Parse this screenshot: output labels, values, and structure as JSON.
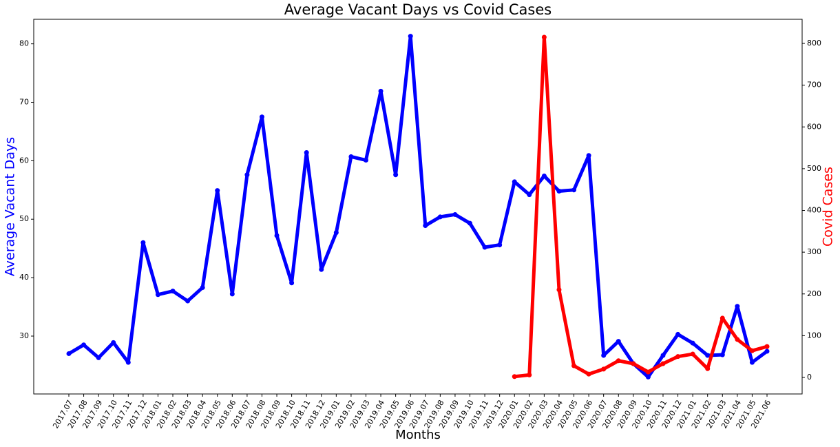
{
  "chart_data": {
    "type": "line",
    "title": "Average Vacant Days vs Covid Cases",
    "xlabel": "Months",
    "ylabel": "Average Vacant Days",
    "y2label": "Covid Cases",
    "categories": [
      "2017.07",
      "2017.08",
      "2017.09",
      "2017.10",
      "2017.11",
      "2017.12",
      "2018.01",
      "2018.02",
      "2018.03",
      "2018.04",
      "2018.05",
      "2018.06",
      "2018.07",
      "2018.08",
      "2018.09",
      "2018.10",
      "2018.11",
      "2018.12",
      "2019.01",
      "2019.02",
      "2019.03",
      "2019.04",
      "2019.05",
      "2019.06",
      "2019.07",
      "2019.08",
      "2019.09",
      "2019.10",
      "2019.11",
      "2019.12",
      "2020.01",
      "2020.02",
      "2020.03",
      "2020.04",
      "2020.05",
      "2020.06",
      "2020.07",
      "2020.08",
      "2020.09",
      "2020.10",
      "2020.11",
      "2020.12",
      "2021.01",
      "2021.02",
      "2021.03",
      "2021.04",
      "2021.05",
      "2021.06"
    ],
    "series": [
      {
        "name": "Average Vacant Days",
        "color": "#0000ff",
        "axis": "y",
        "values": [
          27.0,
          28.5,
          26.3,
          28.9,
          25.5,
          46.0,
          37.1,
          37.7,
          36.0,
          38.3,
          54.9,
          37.2,
          57.6,
          67.5,
          47.2,
          39.1,
          61.4,
          41.4,
          47.7,
          60.7,
          60.1,
          71.9,
          57.6,
          81.3,
          48.9,
          50.4,
          50.8,
          49.3,
          45.2,
          45.6,
          56.4,
          54.2,
          57.4,
          54.8,
          55.0,
          60.9,
          26.7,
          29.1,
          25.3,
          23.0,
          26.7,
          30.3,
          28.8,
          26.7,
          26.8,
          35.1,
          25.5,
          27.4
        ]
      },
      {
        "name": "Covid Cases",
        "color": "#ff0000",
        "axis": "y2",
        "values": [
          null,
          null,
          null,
          null,
          null,
          null,
          null,
          null,
          null,
          null,
          null,
          null,
          null,
          null,
          null,
          null,
          null,
          null,
          null,
          null,
          null,
          null,
          null,
          null,
          null,
          null,
          null,
          null,
          null,
          null,
          2,
          6,
          815,
          210,
          28,
          8,
          20,
          40,
          33,
          13,
          33,
          50,
          56,
          21,
          142,
          91,
          64,
          74
        ]
      }
    ],
    "ylim": [
      20.1,
      84.2
    ],
    "yticks": [
      30,
      40,
      50,
      60,
      70,
      80
    ],
    "y2lim": [
      -39.6,
      857.8
    ],
    "y2ticks": [
      0,
      100,
      200,
      300,
      400,
      500,
      600,
      700,
      800
    ],
    "grid": false
  }
}
